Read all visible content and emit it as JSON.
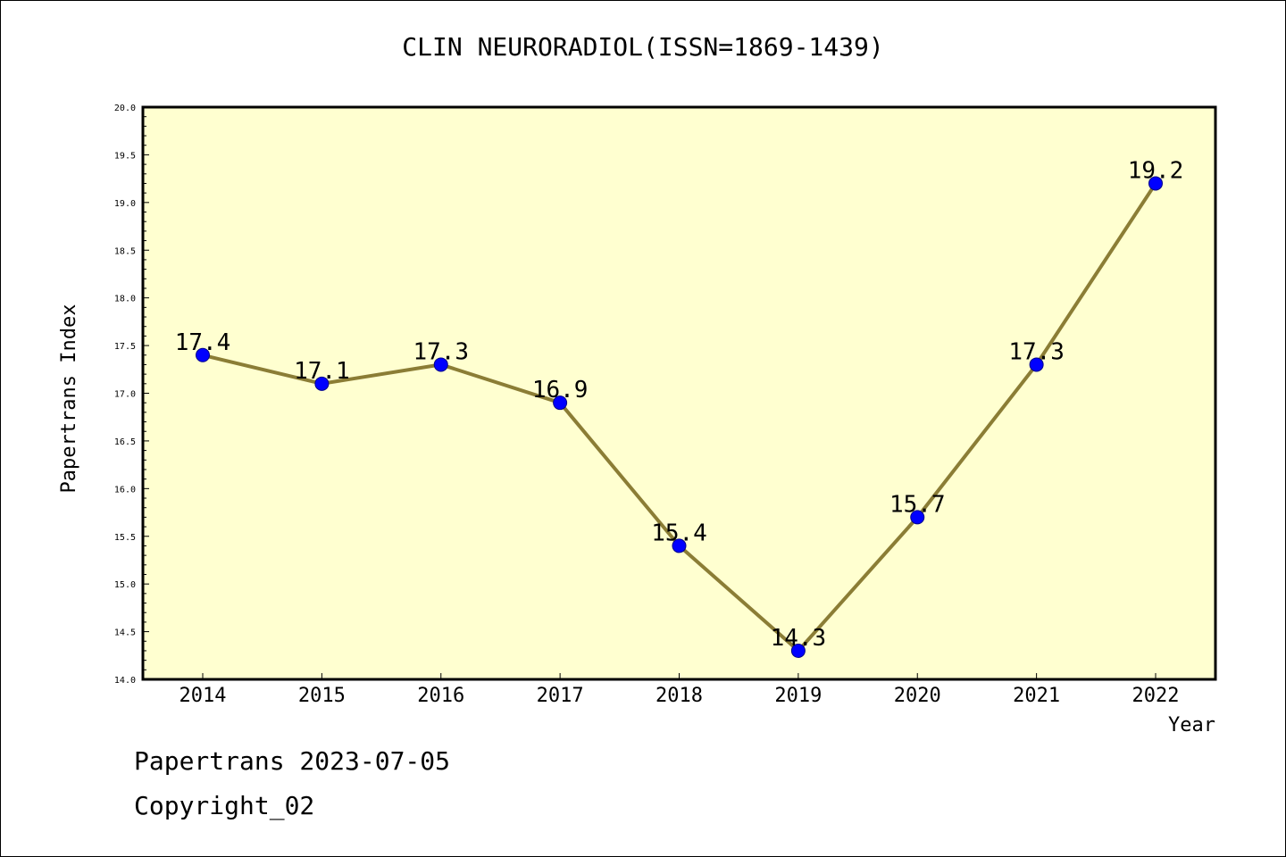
{
  "title": "CLIN NEURORADIOL(ISSN=1869-1439)",
  "footer": {
    "line1": "Papertrans 2023-07-05",
    "line2": "Copyright_02"
  },
  "colors": {
    "plot_background": "#FFFFD0",
    "line": "#8B7D35",
    "marker": "#0000FF",
    "marker_edge": "#00008B",
    "axis": "#000000"
  },
  "chart_data": {
    "type": "line",
    "title": "CLIN NEURORADIOL(ISSN=1869-1439)",
    "xlabel": "Year",
    "ylabel": "Papertrans Index",
    "x": [
      "2014",
      "2015",
      "2016",
      "2017",
      "2018",
      "2019",
      "2020",
      "2021",
      "2022"
    ],
    "series": [
      {
        "values": [
          17.4,
          17.1,
          17.3,
          16.9,
          15.4,
          14.3,
          15.7,
          17.3,
          19.2
        ]
      }
    ],
    "data_labels": [
      "17.4",
      "17.1",
      "17.3",
      "16.9",
      "15.4",
      "14.3",
      "15.7",
      "17.3",
      "19.2"
    ],
    "ylim": [
      14.0,
      20.0
    ],
    "yticks": [
      "14.0",
      "14.5",
      "15.0",
      "15.5",
      "16.0",
      "16.5",
      "17.0",
      "17.5",
      "18.0",
      "18.5",
      "19.0",
      "19.5",
      "20.0"
    ],
    "grid": false,
    "legend": "none"
  }
}
